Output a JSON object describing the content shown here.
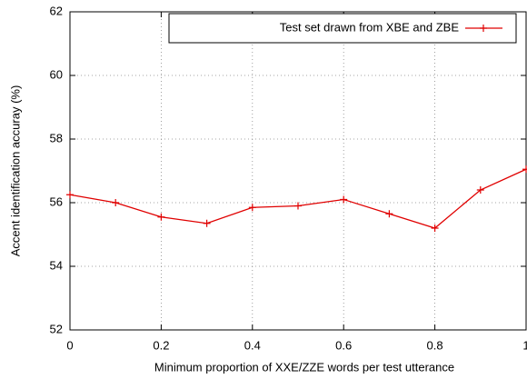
{
  "chart_data": {
    "type": "line",
    "xlabel": "Minimum proportion of XXE/ZZE words per test utterance",
    "ylabel": "Accent identification accuray (%)",
    "x": [
      0,
      0.1,
      0.2,
      0.3,
      0.4,
      0.5,
      0.6,
      0.7,
      0.8,
      0.9,
      1
    ],
    "series": [
      {
        "name": "Test set drawn from XBE and ZBE",
        "color": "#e00000",
        "values": [
          56.25,
          56.0,
          55.55,
          55.35,
          55.85,
          55.9,
          56.1,
          55.65,
          55.2,
          56.4,
          57.05
        ]
      }
    ],
    "xlim": [
      0,
      1
    ],
    "xticks": [
      0,
      0.2,
      0.4,
      0.6,
      0.8,
      1
    ],
    "ylim": [
      52,
      62
    ],
    "yticks": [
      52,
      54,
      56,
      58,
      60,
      62
    ],
    "grid": true,
    "legend": "upper right"
  }
}
